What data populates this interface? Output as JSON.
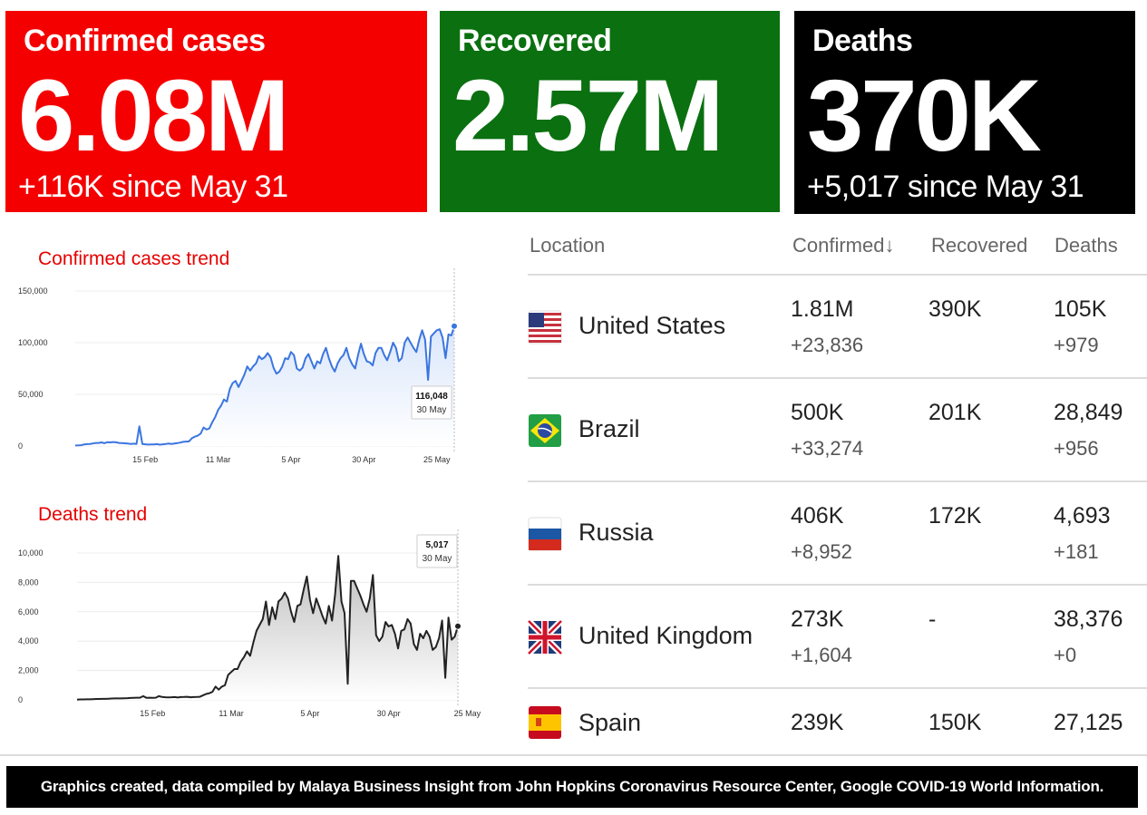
{
  "cards": {
    "confirmed": {
      "title": "Confirmed cases",
      "value": "6.08M",
      "delta": "+116K since May 31",
      "color": "#f50000"
    },
    "recovered": {
      "title": "Recovered",
      "value": "2.57M",
      "color": "#0a7010"
    },
    "deaths": {
      "title": "Deaths",
      "value": "370K",
      "delta": "+5,017 since May 31",
      "color": "#000000"
    }
  },
  "chart_data": [
    {
      "type": "area",
      "title": "Confirmed cases trend",
      "line_color": "#3b75e0",
      "yticks": [
        "0",
        "50,000",
        "100,000",
        "150,000"
      ],
      "ylim": [
        0,
        150000
      ],
      "xticks": [
        "15 Feb",
        "11 Mar",
        "5 Apr",
        "30 Apr",
        "25 May"
      ],
      "x_start": "2020-01-22",
      "x_end": "2020-05-31",
      "values": [
        500,
        600,
        800,
        1500,
        1800,
        2000,
        2500,
        3000,
        3000,
        3500,
        2700,
        3800,
        3500,
        3900,
        3600,
        3000,
        2900,
        2600,
        2500,
        2000,
        2300,
        1900,
        19000,
        2000,
        1700,
        1400,
        1500,
        1500,
        1800,
        1300,
        1700,
        2000,
        2500,
        2000,
        2500,
        2800,
        3300,
        4000,
        4300,
        4500,
        7500,
        9000,
        10000,
        12000,
        18000,
        16000,
        17000,
        23000,
        28000,
        35000,
        39000,
        45000,
        43000,
        55000,
        61000,
        63000,
        57000,
        63000,
        69000,
        77000,
        73000,
        77000,
        80000,
        87000,
        84000,
        86000,
        90000,
        86000,
        76000,
        70000,
        72000,
        77000,
        85000,
        84000,
        91000,
        88000,
        75000,
        73000,
        76000,
        85000,
        89000,
        82000,
        75000,
        82000,
        80000,
        89000,
        95000,
        85000,
        77000,
        72000,
        80000,
        85000,
        88000,
        95000,
        85000,
        79000,
        75000,
        88000,
        99000,
        89000,
        82000,
        81000,
        78000,
        90000,
        95000,
        95000,
        88000,
        83000,
        91000,
        100000,
        95000,
        82000,
        85000,
        100000,
        105000,
        100000,
        95000,
        91000,
        103000,
        112000,
        103000,
        64000,
        106000,
        109000,
        112000,
        113000,
        105000,
        85000,
        108000,
        107000,
        116048
      ],
      "tooltip": {
        "value": "116,048",
        "date": "30 May"
      }
    },
    {
      "type": "area",
      "title": "Deaths trend",
      "line_color": "#222222",
      "yticks": [
        "0",
        "2,000",
        "4,000",
        "6,000",
        "8,000",
        "10,000"
      ],
      "ylim": [
        0,
        10000
      ],
      "xticks": [
        "15 Feb",
        "11 Mar",
        "5 Apr",
        "30 Apr",
        "25 May"
      ],
      "x_start": "2020-01-22",
      "x_end": "2020-05-31",
      "values": [
        20,
        30,
        30,
        40,
        40,
        50,
        60,
        60,
        65,
        70,
        80,
        90,
        100,
        100,
        100,
        110,
        120,
        130,
        140,
        150,
        150,
        250,
        140,
        150,
        140,
        150,
        250,
        200,
        180,
        170,
        180,
        190,
        160,
        190,
        200,
        210,
        180,
        190,
        200,
        210,
        300,
        400,
        450,
        550,
        900,
        700,
        900,
        1000,
        1700,
        1900,
        2100,
        2100,
        2600,
        2900,
        3300,
        3000,
        3900,
        4700,
        5100,
        5500,
        6700,
        5100,
        6300,
        5500,
        6700,
        6900,
        7300,
        6900,
        6000,
        5300,
        6400,
        6500,
        7500,
        8400,
        6800,
        5900,
        6900,
        6300,
        5700,
        5200,
        6400,
        5400,
        7200,
        9800,
        6700,
        5900,
        1100,
        8100,
        8100,
        7600,
        7100,
        6500,
        6000,
        6900,
        8500,
        4400,
        4000,
        4300,
        5300,
        5000,
        5100,
        4500,
        3500,
        4700,
        4800,
        5500,
        5200,
        3800,
        3400,
        4500,
        4200,
        4700,
        4300,
        3400,
        3600,
        4200,
        5400,
        1500,
        5600,
        4100,
        4300,
        5017
      ],
      "tooltip": {
        "value": "5,017",
        "date": "30 May"
      }
    }
  ],
  "table": {
    "headers": {
      "location": "Location",
      "confirmed": "Confirmed",
      "sort_icon": "arrow-down-icon",
      "recovered": "Recovered",
      "deaths": "Deaths"
    },
    "rows": [
      {
        "country": "United States",
        "flag": "us-flag-icon",
        "confirmed": "1.81M",
        "confirmed_delta": "+23,836",
        "recovered": "390K",
        "deaths": "105K",
        "deaths_delta": "+979"
      },
      {
        "country": "Brazil",
        "flag": "brazil-flag-icon",
        "confirmed": "500K",
        "confirmed_delta": "+33,274",
        "recovered": "201K",
        "deaths": "28,849",
        "deaths_delta": "+956"
      },
      {
        "country": "Russia",
        "flag": "russia-flag-icon",
        "confirmed": "406K",
        "confirmed_delta": "+8,952",
        "recovered": "172K",
        "deaths": "4,693",
        "deaths_delta": "+181"
      },
      {
        "country": "United Kingdom",
        "flag": "uk-flag-icon",
        "confirmed": "273K",
        "confirmed_delta": "+1,604",
        "recovered": "-",
        "deaths": "38,376",
        "deaths_delta": "+0"
      },
      {
        "country": "Spain",
        "flag": "spain-flag-icon",
        "confirmed": "239K",
        "recovered": "150K",
        "deaths": "27,125"
      }
    ]
  },
  "footer": "Graphics created, data compiled by Malaya Business Insight from John Hopkins Coronavirus Resource Center, Google COVID-19 World Information."
}
